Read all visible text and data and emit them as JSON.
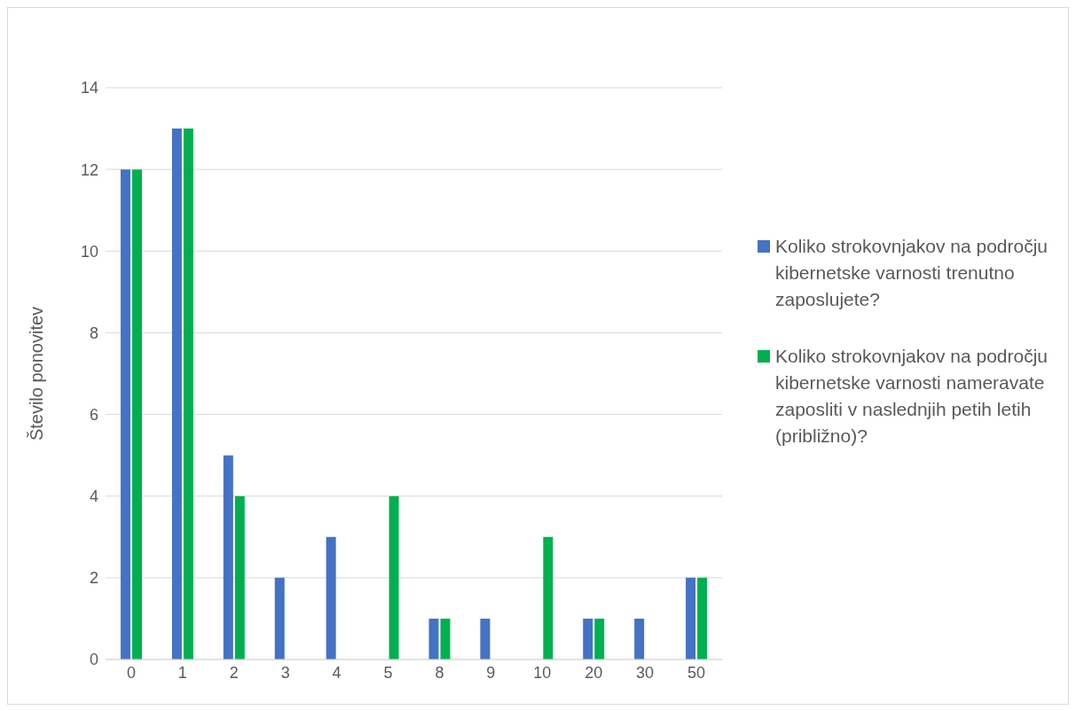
{
  "chart_data": {
    "type": "bar",
    "ylabel": "Število ponovitev",
    "categories": [
      "0",
      "1",
      "2",
      "3",
      "4",
      "5",
      "8",
      "9",
      "10",
      "20",
      "30",
      "50"
    ],
    "series": [
      {
        "name": "Koliko strokovnjakov na področju kibernetske varnosti trenutno zaposlujete?",
        "color": "#4472c4",
        "values": [
          12,
          13,
          5,
          2,
          3,
          0,
          1,
          1,
          0,
          1,
          1,
          2
        ]
      },
      {
        "name": "Koliko strokovnjakov na področju kibernetske varnosti nameravate zaposliti v naslednjih petih letih (približno)?",
        "color": "#00b050",
        "values": [
          12,
          13,
          4,
          0,
          0,
          4,
          1,
          0,
          3,
          1,
          0,
          2
        ]
      }
    ],
    "ylim": [
      0,
      14
    ],
    "yticks": [
      0,
      2,
      4,
      6,
      8,
      10,
      12,
      14
    ],
    "grid": "y",
    "legend": "right"
  }
}
